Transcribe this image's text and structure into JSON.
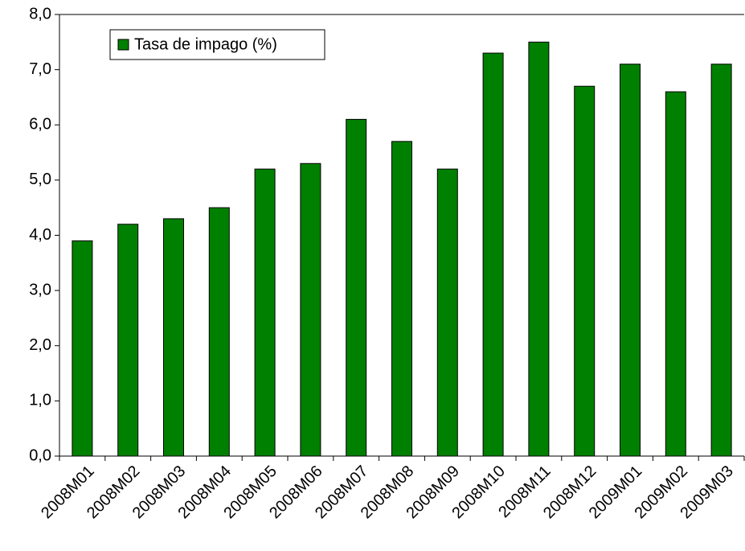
{
  "chart_data": {
    "type": "bar",
    "categories": [
      "2008M01",
      "2008M02",
      "2008M03",
      "2008M04",
      "2008M05",
      "2008M06",
      "2008M07",
      "2008M08",
      "2008M09",
      "2008M10",
      "2008M11",
      "2008M12",
      "2009M01",
      "2009M02",
      "2009M03"
    ],
    "series": [
      {
        "name": "Tasa de impago (%)",
        "color": "#008000",
        "values": [
          3.9,
          4.2,
          4.3,
          4.5,
          5.2,
          5.3,
          6.1,
          5.7,
          5.2,
          7.3,
          7.5,
          6.7,
          7.1,
          6.6,
          7.1
        ]
      }
    ],
    "ylim": [
      0,
      8
    ],
    "yticks": [
      {
        "value": 0,
        "label": "0,0"
      },
      {
        "value": 1,
        "label": "1,0"
      },
      {
        "value": 2,
        "label": "2,0"
      },
      {
        "value": 3,
        "label": "3,0"
      },
      {
        "value": 4,
        "label": "4,0"
      },
      {
        "value": 5,
        "label": "5,0"
      },
      {
        "value": 6,
        "label": "6,0"
      },
      {
        "value": 7,
        "label": "7,0"
      },
      {
        "value": 8,
        "label": "8,0"
      }
    ],
    "grid": false,
    "legend": "top-left"
  }
}
